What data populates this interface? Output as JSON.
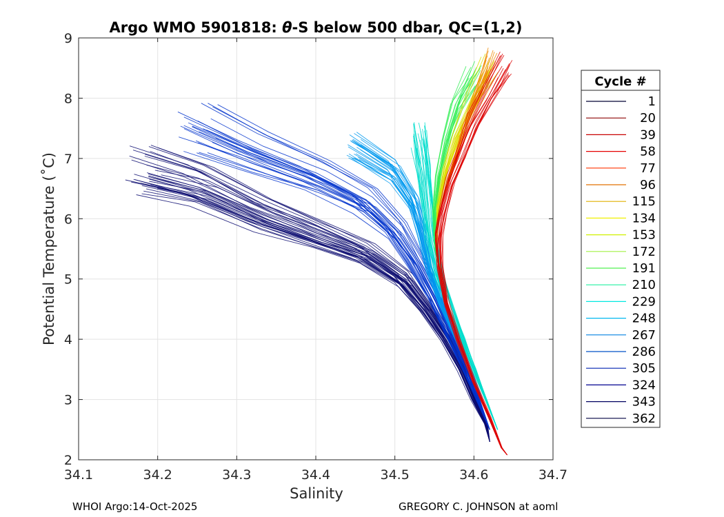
{
  "chart_data": {
    "type": "line",
    "title_prefix": "Argo WMO 5901818: ",
    "title_theta": "θ",
    "title_suffix": "-S below 500 dbar,  QC=(1,2)",
    "xlabel": "Salinity",
    "ylabel": "Potential Temperature (˚C)",
    "xlim": [
      34.1,
      34.7
    ],
    "ylim": [
      2,
      9
    ],
    "xticks": [
      34.1,
      34.2,
      34.3,
      34.4,
      34.5,
      34.6,
      34.7
    ],
    "xtick_labels": [
      "34.1",
      "34.2",
      "34.3",
      "34.4",
      "34.5",
      "34.6",
      "34.7"
    ],
    "yticks": [
      2,
      3,
      4,
      5,
      6,
      7,
      8,
      9
    ],
    "ytick_labels": [
      "2",
      "3",
      "4",
      "5",
      "6",
      "7",
      "8",
      "9"
    ],
    "grid": true,
    "legend_title": "Cycle #",
    "legend_position": "right, outside plot",
    "legend_entries": [
      {
        "label": "1",
        "color": "#000033"
      },
      {
        "label": "20",
        "color": "#8b0000"
      },
      {
        "label": "39",
        "color": "#c80000"
      },
      {
        "label": "58",
        "color": "#e60000"
      },
      {
        "label": "77",
        "color": "#ff3300"
      },
      {
        "label": "96",
        "color": "#e07000"
      },
      {
        "label": "115",
        "color": "#e0b000"
      },
      {
        "label": "134",
        "color": "#f0f000"
      },
      {
        "label": "153",
        "color": "#d0f000"
      },
      {
        "label": "172",
        "color": "#a0f040"
      },
      {
        "label": "191",
        "color": "#50f050"
      },
      {
        "label": "210",
        "color": "#20f0a0"
      },
      {
        "label": "229",
        "color": "#00e8e0"
      },
      {
        "label": "248",
        "color": "#00b8f0"
      },
      {
        "label": "267",
        "color": "#0080e0"
      },
      {
        "label": "286",
        "color": "#0050c8"
      },
      {
        "label": "305",
        "color": "#0020b0"
      },
      {
        "label": "324",
        "color": "#000090"
      },
      {
        "label": "343",
        "color": "#000060"
      },
      {
        "label": "362",
        "color": "#000040"
      }
    ],
    "series": [
      {
        "name": "deep branch (dark blue)",
        "color": "#0a0a70",
        "points": [
          [
            34.18,
            6.85
          ],
          [
            34.25,
            6.6
          ],
          [
            34.33,
            6.1
          ],
          [
            34.4,
            5.75
          ],
          [
            34.46,
            5.45
          ],
          [
            34.51,
            5.0
          ],
          [
            34.54,
            4.5
          ],
          [
            34.565,
            4.0
          ],
          [
            34.585,
            3.5
          ],
          [
            34.6,
            3.0
          ],
          [
            34.615,
            2.6
          ],
          [
            34.62,
            2.3
          ]
        ]
      },
      {
        "name": "blue branch",
        "color": "#0033cc",
        "points": [
          [
            34.25,
            7.5
          ],
          [
            34.32,
            7.1
          ],
          [
            34.4,
            6.7
          ],
          [
            34.46,
            6.3
          ],
          [
            34.5,
            5.8
          ],
          [
            34.525,
            5.3
          ],
          [
            34.55,
            4.7
          ],
          [
            34.57,
            4.1
          ],
          [
            34.59,
            3.5
          ],
          [
            34.605,
            3.0
          ],
          [
            34.62,
            2.5
          ]
        ]
      },
      {
        "name": "light blue branch",
        "color": "#0099ee",
        "points": [
          [
            34.45,
            7.2
          ],
          [
            34.5,
            6.8
          ],
          [
            34.525,
            6.3
          ],
          [
            34.535,
            5.8
          ],
          [
            34.545,
            5.2
          ],
          [
            34.56,
            4.6
          ],
          [
            34.58,
            4.0
          ],
          [
            34.595,
            3.5
          ],
          [
            34.61,
            3.0
          ],
          [
            34.625,
            2.5
          ]
        ]
      },
      {
        "name": "cyan branch",
        "color": "#00ddcc",
        "points": [
          [
            34.53,
            7.4
          ],
          [
            34.535,
            6.9
          ],
          [
            34.54,
            6.3
          ],
          [
            34.545,
            5.7
          ],
          [
            34.555,
            5.1
          ],
          [
            34.57,
            4.5
          ],
          [
            34.585,
            4.0
          ],
          [
            34.6,
            3.5
          ],
          [
            34.615,
            3.0
          ],
          [
            34.63,
            2.5
          ]
        ]
      },
      {
        "name": "green branch",
        "color": "#33ee55",
        "points": [
          [
            34.6,
            8.4
          ],
          [
            34.58,
            7.9
          ],
          [
            34.565,
            7.3
          ],
          [
            34.555,
            6.7
          ],
          [
            34.55,
            6.1
          ],
          [
            34.552,
            5.5
          ],
          [
            34.56,
            4.9
          ]
        ]
      },
      {
        "name": "yellow branch",
        "color": "#dddd00",
        "points": [
          [
            34.62,
            8.5
          ],
          [
            34.6,
            8.0
          ],
          [
            34.58,
            7.4
          ],
          [
            34.565,
            6.8
          ],
          [
            34.555,
            6.2
          ],
          [
            34.553,
            5.6
          ]
        ]
      },
      {
        "name": "orange branch",
        "color": "#ee8800",
        "points": [
          [
            34.625,
            8.6
          ],
          [
            34.61,
            8.1
          ],
          [
            34.59,
            7.5
          ],
          [
            34.575,
            6.9
          ],
          [
            34.56,
            6.3
          ]
        ]
      },
      {
        "name": "red branch",
        "color": "#dd0000",
        "points": [
          [
            34.64,
            8.55
          ],
          [
            34.62,
            8.1
          ],
          [
            34.6,
            7.6
          ],
          [
            34.585,
            7.1
          ],
          [
            34.57,
            6.6
          ],
          [
            34.56,
            6.1
          ],
          [
            34.555,
            5.7
          ],
          [
            34.557,
            5.2
          ],
          [
            34.565,
            4.6
          ],
          [
            34.58,
            4.0
          ],
          [
            34.6,
            3.3
          ],
          [
            34.62,
            2.7
          ],
          [
            34.635,
            2.2
          ],
          [
            34.642,
            2.08
          ]
        ]
      }
    ]
  },
  "footer": {
    "left": "WHOI Argo:14-Oct-2025",
    "right": "GREGORY C. JOHNSON at aoml"
  }
}
